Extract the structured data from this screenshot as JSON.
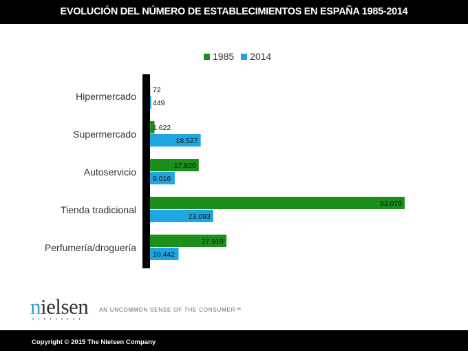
{
  "header": {
    "title": "EVOLUCIÓN DEL NÚMERO DE ESTABLECIMIENTOS EN ESPAÑA 1985-2014"
  },
  "chart_data": {
    "type": "bar",
    "orientation": "horizontal",
    "title": "",
    "categories": [
      "Hipermercado",
      "Supermercado",
      "Autoservicio",
      "Tienda tradicional",
      "Perfumería/droguería"
    ],
    "series": [
      {
        "name": "1985",
        "color": "#1a8f1a",
        "values": [
          72,
          1622,
          17820,
          93079,
          27919
        ],
        "labels": [
          "72",
          "1.622",
          "17.820",
          "93.079",
          "27.919"
        ]
      },
      {
        "name": "2014",
        "color": "#1fa5e0",
        "values": [
          449,
          18527,
          9016,
          23093,
          10442
        ],
        "labels": [
          "449",
          "18.527",
          "9.016",
          "23.093",
          "10.442"
        ]
      }
    ],
    "legend": "top",
    "grid": false,
    "xlim": [
      0,
      93079
    ]
  },
  "branding": {
    "logo": "nielsen",
    "tagline": "AN UNCOMMON SENSE OF THE CONSUMER™"
  },
  "footer": {
    "copyright": "Copyright © 2015 The Nielsen Company"
  }
}
